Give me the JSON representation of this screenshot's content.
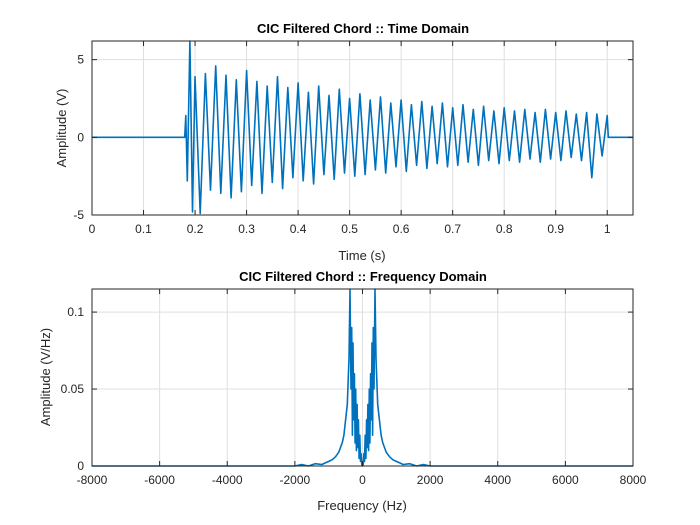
{
  "chart_data": [
    {
      "type": "line",
      "title": "CIC Filtered Chord :: Time Domain",
      "xlabel": "Time (s)",
      "ylabel": "Amplitude (V)",
      "xlim": [
        0,
        1.05
      ],
      "ylim": [
        -5,
        6.2
      ],
      "xticks": [
        0,
        0.1,
        0.2,
        0.3,
        0.4,
        0.5,
        0.6,
        0.7,
        0.8,
        0.9,
        1
      ],
      "xtick_labels": [
        "0",
        "0.1",
        "0.2",
        "0.3",
        "0.4",
        "0.5",
        "0.6",
        "0.7",
        "0.8",
        "0.9",
        "1"
      ],
      "yticks": [
        -5,
        0,
        5
      ],
      "ytick_labels": [
        "-5",
        "0",
        "5"
      ],
      "grid": true,
      "line_color": "#0072bd",
      "series": [
        {
          "x": [
            0,
            0.18,
            0.182,
            0.185,
            0.19,
            0.195,
            0.2,
            0.21,
            0.22,
            0.23,
            0.24,
            0.25,
            0.26,
            0.27,
            0.28,
            0.29,
            0.3,
            0.31,
            0.32,
            0.33,
            0.34,
            0.35,
            0.36,
            0.37,
            0.38,
            0.39,
            0.4,
            0.41,
            0.42,
            0.43,
            0.44,
            0.45,
            0.46,
            0.47,
            0.48,
            0.49,
            0.5,
            0.51,
            0.52,
            0.53,
            0.54,
            0.55,
            0.56,
            0.57,
            0.58,
            0.59,
            0.6,
            0.61,
            0.62,
            0.63,
            0.64,
            0.65,
            0.66,
            0.67,
            0.68,
            0.69,
            0.7,
            0.71,
            0.72,
            0.73,
            0.74,
            0.75,
            0.76,
            0.77,
            0.78,
            0.79,
            0.8,
            0.81,
            0.82,
            0.83,
            0.84,
            0.85,
            0.86,
            0.87,
            0.88,
            0.89,
            0.9,
            0.91,
            0.92,
            0.93,
            0.94,
            0.95,
            0.96,
            0.97,
            0.98,
            0.99,
            1.0,
            1.002,
            1.05
          ],
          "y": [
            0,
            0,
            1.4,
            -2.8,
            6.3,
            -4.8,
            3.9,
            -4.9,
            4.1,
            -3.4,
            4.6,
            -3.6,
            4.0,
            -3.9,
            3.7,
            -3.5,
            4.3,
            -3.1,
            3.6,
            -3.6,
            3.3,
            -2.9,
            3.9,
            -3.3,
            3.2,
            -2.6,
            3.5,
            -2.8,
            2.9,
            -3.0,
            3.3,
            -2.4,
            2.7,
            -2.7,
            3.1,
            -2.3,
            2.5,
            -2.5,
            2.8,
            -2.4,
            2.4,
            -2.1,
            2.6,
            -2.3,
            2.2,
            -1.9,
            2.4,
            -2.2,
            2.1,
            -1.8,
            2.3,
            -2.0,
            2.0,
            -1.7,
            2.2,
            -1.9,
            1.9,
            -1.8,
            2.1,
            -1.6,
            1.8,
            -1.8,
            2.0,
            -1.5,
            1.7,
            -1.7,
            1.9,
            -1.5,
            1.7,
            -1.6,
            1.8,
            -1.4,
            1.6,
            -1.6,
            1.8,
            -1.4,
            1.6,
            -1.5,
            1.7,
            -1.3,
            1.5,
            -1.5,
            1.6,
            -2.6,
            1.5,
            -1.2,
            1.4,
            0,
            0
          ]
        }
      ]
    },
    {
      "type": "line",
      "title": "CIC Filtered Chord :: Frequency Domain",
      "xlabel": "Frequency (Hz)",
      "ylabel": "Amplitude (V/Hz)",
      "xlim": [
        -8000,
        8000
      ],
      "ylim": [
        0,
        0.115
      ],
      "xticks": [
        -8000,
        -6000,
        -4000,
        -2000,
        0,
        2000,
        4000,
        6000,
        8000
      ],
      "xtick_labels": [
        "-8000",
        "-6000",
        "-4000",
        "-2000",
        "0",
        "2000",
        "4000",
        "6000",
        "8000"
      ],
      "yticks": [
        0,
        0.05,
        0.1
      ],
      "ytick_labels": [
        "0",
        "0.05",
        "0.1"
      ],
      "grid": true,
      "line_color": "#0072bd",
      "series": [
        {
          "x": [
            -8000,
            -2000,
            -1800,
            -1600,
            -1400,
            -1200,
            -1100,
            -1000,
            -900,
            -800,
            -700,
            -600,
            -550,
            -500,
            -450,
            -400,
            -370,
            -340,
            -320,
            -300,
            -280,
            -260,
            -240,
            -220,
            -200,
            -180,
            -160,
            -140,
            -120,
            -100,
            -80,
            -60,
            -40,
            -20,
            0,
            20,
            40,
            60,
            80,
            100,
            120,
            140,
            160,
            180,
            200,
            220,
            240,
            260,
            280,
            300,
            320,
            340,
            370,
            400,
            450,
            500,
            550,
            600,
            700,
            800,
            900,
            1000,
            1100,
            1200,
            1400,
            1600,
            1800,
            2000,
            8000
          ],
          "y": [
            0,
            0,
            0.001,
            0,
            0.0015,
            0.001,
            0.002,
            0.003,
            0.004,
            0.006,
            0.009,
            0.015,
            0.02,
            0.03,
            0.04,
            0.07,
            0.115,
            0.05,
            0.09,
            0.02,
            0.08,
            0.03,
            0.06,
            0.015,
            0.05,
            0.01,
            0.04,
            0.012,
            0.03,
            0.005,
            0.02,
            0.003,
            0.008,
            0.001,
            0,
            0.001,
            0.008,
            0.003,
            0.02,
            0.005,
            0.03,
            0.012,
            0.04,
            0.01,
            0.05,
            0.015,
            0.06,
            0.03,
            0.08,
            0.02,
            0.09,
            0.05,
            0.115,
            0.07,
            0.04,
            0.03,
            0.02,
            0.015,
            0.009,
            0.006,
            0.004,
            0.003,
            0.002,
            0.001,
            0.0015,
            0,
            0.001,
            0,
            0
          ]
        }
      ]
    }
  ]
}
